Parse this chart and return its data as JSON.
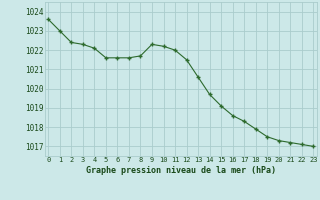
{
  "x": [
    0,
    1,
    2,
    3,
    4,
    5,
    6,
    7,
    8,
    9,
    10,
    11,
    12,
    13,
    14,
    15,
    16,
    17,
    18,
    19,
    20,
    21,
    22,
    23
  ],
  "y": [
    1023.6,
    1023.0,
    1022.4,
    1022.3,
    1022.1,
    1021.6,
    1021.6,
    1021.6,
    1021.7,
    1022.3,
    1022.2,
    1022.0,
    1021.5,
    1020.6,
    1019.7,
    1019.1,
    1018.6,
    1018.3,
    1017.9,
    1017.5,
    1017.3,
    1017.2,
    1017.1,
    1017.0
  ],
  "line_color": "#2d6a2d",
  "marker": "+",
  "bg_color": "#cce8e8",
  "grid_color": "#aacccc",
  "xlabel": "Graphe pression niveau de la mer (hPa)",
  "xlabel_color": "#1a4a1a",
  "tick_color": "#1a4a1a",
  "ylim_min": 1016.5,
  "ylim_max": 1024.5,
  "yticks": [
    1017,
    1018,
    1019,
    1020,
    1021,
    1022,
    1023,
    1024
  ],
  "xticks": [
    0,
    1,
    2,
    3,
    4,
    5,
    6,
    7,
    8,
    9,
    10,
    11,
    12,
    13,
    14,
    15,
    16,
    17,
    18,
    19,
    20,
    21,
    22,
    23
  ],
  "xlim_min": -0.3,
  "xlim_max": 23.3
}
